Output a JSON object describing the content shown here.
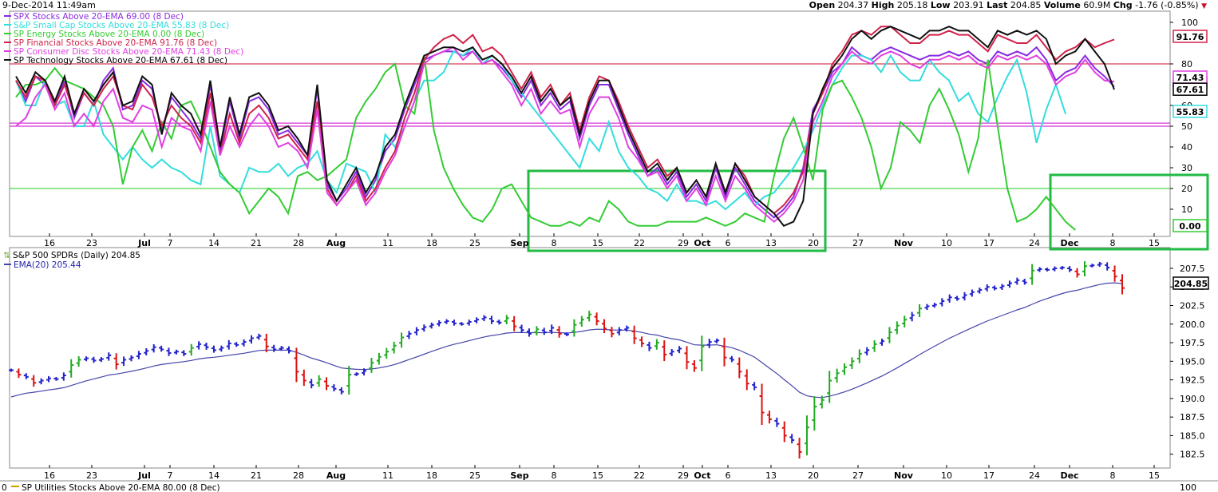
{
  "header": {
    "datetime": "9-Dec-2014 11:49am",
    "open_label": "Open",
    "open": "204.37",
    "high_label": "High",
    "high": "205.18",
    "low_label": "Low",
    "low": "203.91",
    "last_label": "Last",
    "last": "204.85",
    "volume_label": "Volume",
    "volume": "60.9M",
    "chg_label": "Chg",
    "chg": "-1.76 (-0.85%)"
  },
  "chart_data": [
    {
      "type": "line",
      "panel": "breadth",
      "x_ticks": [
        "16",
        "23",
        "Jul",
        "7",
        "14",
        "21",
        "28",
        "Aug",
        "11",
        "18",
        "25",
        "Sep",
        "8",
        "15",
        "22",
        "29",
        "Oct",
        "6",
        "13",
        "20",
        "27",
        "Nov",
        "10",
        "17",
        "24",
        "Dec",
        "8",
        "15"
      ],
      "month_ticks": [
        "Jul",
        "Aug",
        "Sep",
        "Oct",
        "Nov",
        "Dec"
      ],
      "y_ticks": [
        100,
        80,
        60,
        50,
        40,
        30,
        20,
        10
      ],
      "ylim": [
        0,
        100
      ],
      "grid": false,
      "legend_position": "top-left",
      "reference_lines": [
        {
          "value": 80,
          "color": "#c8102e"
        },
        {
          "value": 50,
          "color": "#cc00cc"
        },
        {
          "value": 51.5,
          "color": "#cc00cc"
        },
        {
          "value": 20,
          "color": "#22cc22"
        }
      ],
      "series": [
        {
          "name": "SPX Stocks Above 20-EMA 69.00 (8 Dec)",
          "color": "#8a2be2",
          "last_tag": "69.00",
          "values": [
            72,
            62,
            74,
            70,
            60,
            72,
            54,
            66,
            60,
            72,
            78,
            58,
            60,
            72,
            68,
            48,
            64,
            58,
            52,
            44,
            70,
            38,
            62,
            44,
            62,
            64,
            58,
            46,
            48,
            42,
            36,
            68,
            22,
            14,
            20,
            28,
            16,
            24,
            38,
            44,
            58,
            70,
            82,
            84,
            86,
            86,
            84,
            86,
            80,
            82,
            78,
            72,
            64,
            72,
            60,
            66,
            58,
            62,
            44,
            60,
            70,
            70,
            58,
            46,
            36,
            26,
            30,
            22,
            28,
            16,
            22,
            14,
            30,
            16,
            30,
            22,
            14,
            10,
            6,
            10,
            16,
            30,
            58,
            66,
            76,
            80,
            88,
            84,
            82,
            86,
            88,
            86,
            84,
            82,
            84,
            84,
            86,
            84,
            86,
            82,
            80,
            86,
            84,
            86,
            84,
            88,
            82,
            72,
            76,
            78,
            84,
            78,
            74,
            69
          ]
        },
        {
          "name": "S&P Small Cap Stocks Above 20-EMA 55.83 (8 Dec)",
          "color": "#33dddd",
          "last_tag": "55.83",
          "values": [
            72,
            60,
            60,
            72,
            60,
            62,
            50,
            50,
            62,
            46,
            40,
            34,
            40,
            34,
            30,
            34,
            30,
            28,
            24,
            22,
            50,
            26,
            22,
            18,
            30,
            28,
            28,
            32,
            26,
            30,
            32,
            38,
            24,
            18,
            32,
            30,
            28,
            18,
            46,
            40,
            50,
            62,
            72,
            72,
            76,
            86,
            84,
            88,
            80,
            84,
            80,
            72,
            66,
            60,
            54,
            48,
            42,
            36,
            30,
            44,
            38,
            52,
            38,
            30,
            26,
            20,
            18,
            14,
            22,
            14,
            14,
            12,
            14,
            10,
            14,
            18,
            12,
            16,
            18,
            24,
            30,
            38,
            48,
            60,
            70,
            78,
            84,
            84,
            82,
            76,
            84,
            76,
            72,
            72,
            82,
            76,
            72,
            62,
            66,
            56,
            52,
            64,
            74,
            82,
            66,
            42,
            58,
            70,
            55.83
          ]
        },
        {
          "name": "SP Energy Stocks Above 20-EMA 0.00 (8 Dec)",
          "color": "#33cc33",
          "last_tag": "0.00",
          "values": [
            64,
            70,
            70,
            72,
            78,
            72,
            70,
            68,
            64,
            60,
            50,
            22,
            40,
            48,
            38,
            52,
            44,
            60,
            62,
            52,
            40,
            28,
            22,
            18,
            8,
            14,
            20,
            16,
            8,
            26,
            28,
            24,
            26,
            30,
            34,
            54,
            62,
            68,
            76,
            80,
            60,
            56,
            84,
            48,
            30,
            20,
            12,
            6,
            4,
            10,
            20,
            22,
            14,
            6,
            4,
            2,
            2,
            4,
            2,
            6,
            4,
            14,
            10,
            4,
            2,
            2,
            2,
            4,
            4,
            4,
            4,
            6,
            4,
            2,
            4,
            8,
            6,
            4,
            26,
            44,
            54,
            40,
            24,
            58,
            70,
            72,
            64,
            54,
            40,
            20,
            30,
            52,
            48,
            42,
            60,
            68,
            58,
            46,
            28,
            44,
            82,
            50,
            20,
            4,
            6,
            10,
            16,
            10,
            4,
            0
          ]
        },
        {
          "name": "SP Financial Stocks Above 20-EMA 91.76 (8 Dec)",
          "color": "#d0224a",
          "last_tag": "91.76",
          "values": [
            72,
            64,
            74,
            72,
            60,
            70,
            56,
            66,
            60,
            68,
            74,
            60,
            58,
            70,
            64,
            50,
            60,
            54,
            50,
            42,
            66,
            36,
            56,
            42,
            56,
            60,
            54,
            44,
            46,
            40,
            34,
            62,
            20,
            12,
            18,
            26,
            14,
            20,
            30,
            38,
            54,
            66,
            82,
            88,
            92,
            94,
            90,
            94,
            86,
            88,
            84,
            76,
            68,
            76,
            64,
            70,
            60,
            66,
            48,
            64,
            74,
            72,
            62,
            50,
            40,
            30,
            34,
            26,
            30,
            18,
            24,
            16,
            32,
            18,
            32,
            26,
            16,
            12,
            8,
            12,
            18,
            28,
            56,
            66,
            80,
            86,
            94,
            96,
            94,
            98,
            98,
            94,
            90,
            90,
            94,
            94,
            96,
            94,
            94,
            90,
            86,
            94,
            92,
            90,
            90,
            94,
            88,
            82,
            86,
            88,
            92,
            88,
            90,
            91.76
          ]
        },
        {
          "name": "SP Consumer Disc Stocks Above 20-EMA 71.43 (8 Dec)",
          "color": "#e040e0",
          "last_tag": "71.43",
          "values": [
            50,
            54,
            64,
            70,
            58,
            66,
            50,
            56,
            50,
            62,
            68,
            54,
            52,
            60,
            58,
            40,
            54,
            50,
            48,
            38,
            62,
            36,
            50,
            40,
            50,
            56,
            50,
            40,
            42,
            38,
            30,
            58,
            18,
            12,
            18,
            24,
            12,
            18,
            28,
            36,
            50,
            62,
            80,
            84,
            86,
            88,
            82,
            86,
            80,
            82,
            76,
            70,
            60,
            68,
            56,
            62,
            56,
            58,
            40,
            56,
            64,
            64,
            54,
            40,
            34,
            26,
            28,
            20,
            26,
            14,
            20,
            12,
            26,
            14,
            26,
            20,
            12,
            8,
            4,
            8,
            14,
            24,
            52,
            62,
            74,
            80,
            86,
            82,
            80,
            84,
            86,
            84,
            80,
            78,
            82,
            82,
            84,
            82,
            84,
            80,
            78,
            84,
            82,
            84,
            82,
            84,
            80,
            70,
            74,
            76,
            82,
            76,
            72,
            71.43
          ]
        },
        {
          "name": "SP Technology Stocks Above 20-EMA 67.61 (8 Dec)",
          "color": "#111111",
          "last_tag": "67.61",
          "values": [
            74,
            66,
            76,
            72,
            62,
            74,
            56,
            68,
            62,
            70,
            76,
            60,
            62,
            74,
            70,
            46,
            66,
            60,
            56,
            46,
            72,
            40,
            64,
            46,
            64,
            66,
            60,
            48,
            50,
            44,
            36,
            70,
            24,
            14,
            22,
            30,
            18,
            26,
            40,
            46,
            60,
            72,
            84,
            86,
            88,
            88,
            86,
            88,
            82,
            84,
            80,
            74,
            66,
            74,
            62,
            68,
            60,
            64,
            46,
            62,
            72,
            72,
            60,
            48,
            38,
            28,
            32,
            24,
            30,
            18,
            24,
            16,
            32,
            18,
            32,
            24,
            16,
            12,
            8,
            2,
            4,
            14,
            56,
            68,
            78,
            84,
            92,
            96,
            92,
            96,
            98,
            96,
            94,
            92,
            96,
            96,
            98,
            96,
            96,
            92,
            88,
            96,
            94,
            96,
            94,
            96,
            92,
            80,
            84,
            86,
            92,
            86,
            80,
            67.61
          ]
        }
      ]
    },
    {
      "type": "ohlc",
      "panel": "price",
      "title": "S&P 500 SPDRs (Daily) 204.85",
      "overlay": {
        "name": "EMA(20) 205.44",
        "color": "#4444aa",
        "value": 205.44
      },
      "last_tag": "204.85",
      "x_ticks": [
        "16",
        "23",
        "Jul",
        "7",
        "14",
        "21",
        "28",
        "Aug",
        "11",
        "18",
        "25",
        "Sep",
        "8",
        "15",
        "22",
        "29",
        "Oct",
        "6",
        "13",
        "20",
        "27",
        "Nov",
        "10",
        "17",
        "24",
        "Dec",
        "8",
        "15"
      ],
      "y_ticks": [
        207.5,
        205.0,
        202.5,
        200.0,
        197.5,
        195.0,
        192.5,
        190.0,
        187.5,
        185.0,
        182.5
      ],
      "ylim": [
        181.5,
        209
      ],
      "up_color": "#22aa22",
      "down_color": "#dd1111",
      "neutral_color": "#2222cc",
      "closes": [
        193.8,
        193.2,
        192.9,
        192.1,
        192.4,
        192.7,
        192.6,
        193.1,
        194.5,
        195.2,
        195.4,
        195.1,
        195.3,
        195.8,
        194.6,
        195.2,
        195.5,
        196.0,
        196.4,
        196.9,
        196.6,
        196.1,
        196.3,
        196.0,
        196.8,
        197.3,
        196.9,
        196.5,
        196.8,
        197.4,
        197.2,
        197.6,
        198.1,
        198.4,
        197.0,
        196.6,
        196.8,
        196.4,
        193.6,
        192.4,
        191.8,
        192.6,
        191.7,
        191.3,
        190.9,
        193.2,
        193.3,
        193.7,
        194.8,
        195.6,
        196.3,
        197.1,
        198.2,
        198.7,
        199.2,
        199.6,
        199.9,
        200.2,
        200.4,
        200.1,
        200.0,
        200.3,
        200.6,
        200.9,
        200.4,
        200.2,
        200.8,
        199.7,
        199.2,
        198.7,
        199.3,
        198.9,
        199.5,
        198.7,
        198.6,
        199.9,
        200.6,
        201.3,
        200.4,
        199.4,
        198.7,
        199.2,
        199.5,
        198.1,
        197.4,
        196.8,
        197.5,
        195.9,
        196.3,
        196.7,
        194.9,
        194.1,
        197.0,
        197.6,
        197.8,
        195.5,
        195.2,
        193.6,
        192.0,
        191.5,
        188.1,
        187.2,
        186.6,
        185.0,
        184.4,
        182.8,
        186.1,
        188.9,
        189.8,
        192.4,
        193.4,
        194.2,
        195.0,
        196.0,
        196.5,
        197.3,
        197.7,
        198.9,
        199.8,
        200.6,
        201.2,
        202.1,
        202.4,
        202.6,
        203.1,
        203.6,
        203.4,
        203.9,
        204.3,
        204.6,
        205.0,
        204.8,
        205.1,
        205.5,
        205.9,
        205.6,
        207.2,
        207.4,
        207.3,
        207.5,
        207.6,
        207.3,
        206.7,
        207.8,
        207.9,
        208.1,
        207.6,
        206.4,
        204.85
      ]
    }
  ],
  "bottom_panel": {
    "legend": "SP Utilities Stocks Above 20-EMA 80.00 (8 Dec)",
    "y_top": "100",
    "left_tick": "0"
  }
}
